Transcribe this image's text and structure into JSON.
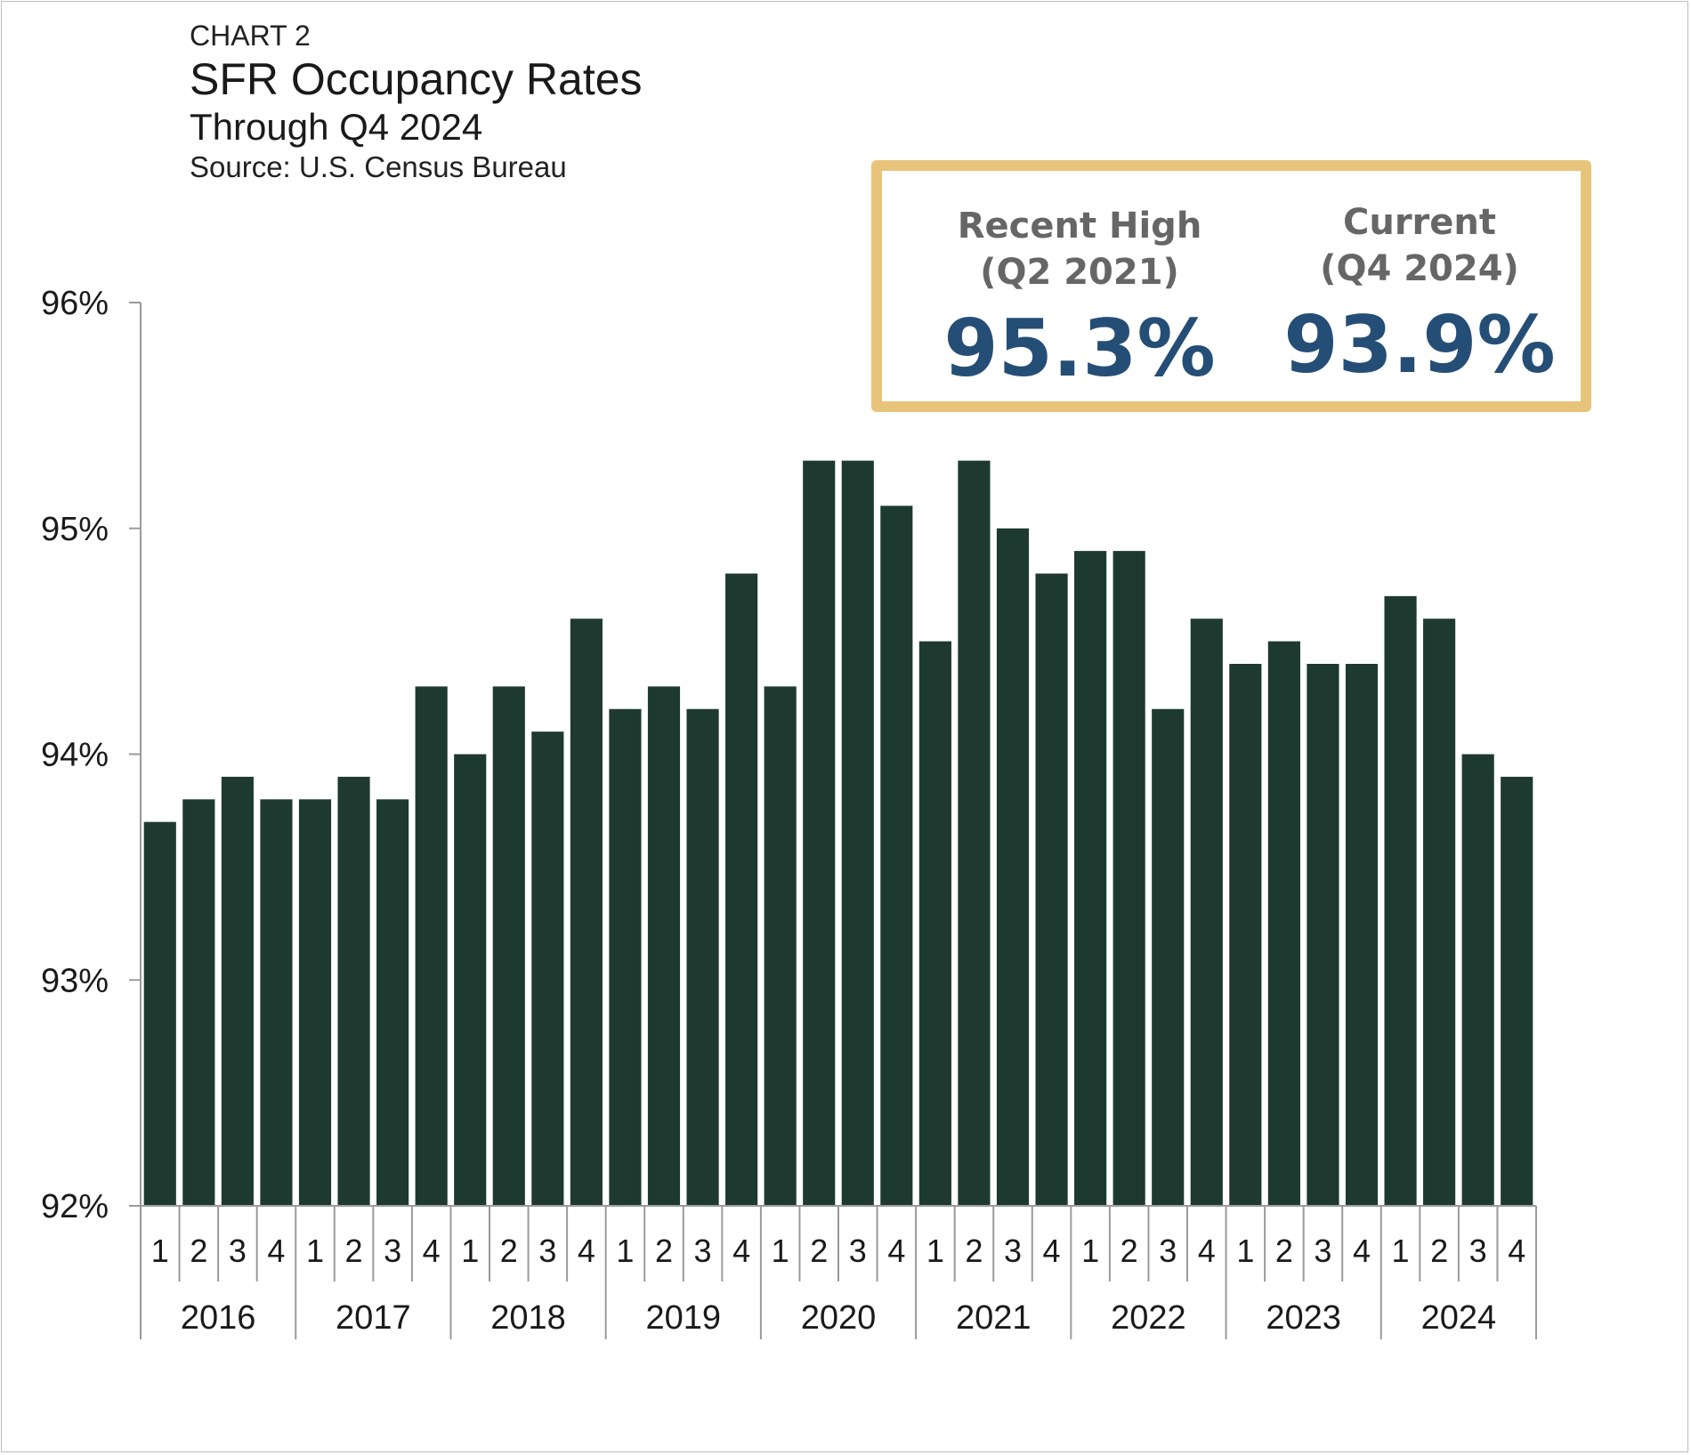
{
  "header": {
    "chart_number": "CHART 2",
    "title": "SFR Occupancy Rates",
    "subtitle": "Through Q4 2024",
    "source": "Source: U.S. Census Bureau"
  },
  "highlight": {
    "recent_high": {
      "label_line1": "Recent High",
      "label_line2": "(Q2 2021)",
      "value": "95.3%"
    },
    "current": {
      "label_line1": "Current",
      "label_line2": "(Q4 2024)",
      "value": "93.9%"
    },
    "border_color": "#e7c47a",
    "value_color": "#254e76"
  },
  "chart_data": {
    "type": "bar",
    "title": "SFR Occupancy Rates",
    "subtitle": "Through Q4 2024",
    "xlabel": "",
    "ylabel": "",
    "ylim": [
      92,
      96
    ],
    "y_ticks": [
      92,
      93,
      94,
      95,
      96
    ],
    "y_tick_labels": [
      "92%",
      "93%",
      "94%",
      "95%",
      "96%"
    ],
    "grid": false,
    "legend": "none",
    "bar_color": "#1e3a30",
    "years": [
      "2016",
      "2017",
      "2018",
      "2019",
      "2020",
      "2021",
      "2022",
      "2023",
      "2024"
    ],
    "quarter_labels": [
      "1",
      "2",
      "3",
      "4"
    ],
    "categories": [
      "2016 Q1",
      "2016 Q2",
      "2016 Q3",
      "2016 Q4",
      "2017 Q1",
      "2017 Q2",
      "2017 Q3",
      "2017 Q4",
      "2018 Q1",
      "2018 Q2",
      "2018 Q3",
      "2018 Q4",
      "2019 Q1",
      "2019 Q2",
      "2019 Q3",
      "2019 Q4",
      "2020 Q1",
      "2020 Q2",
      "2020 Q3",
      "2020 Q4",
      "2021 Q1",
      "2021 Q2",
      "2021 Q3",
      "2021 Q4",
      "2022 Q1",
      "2022 Q2",
      "2022 Q3",
      "2022 Q4",
      "2023 Q1",
      "2023 Q2",
      "2023 Q3",
      "2023 Q4",
      "2024 Q1",
      "2024 Q2",
      "2024 Q3",
      "2024 Q4"
    ],
    "values": [
      93.7,
      93.8,
      93.9,
      93.8,
      93.8,
      93.9,
      93.8,
      94.3,
      94.0,
      94.3,
      94.1,
      94.6,
      94.2,
      94.3,
      94.2,
      94.8,
      94.3,
      95.3,
      95.3,
      95.1,
      94.5,
      95.3,
      95.0,
      94.8,
      94.9,
      94.9,
      94.2,
      94.6,
      94.4,
      94.5,
      94.4,
      94.4,
      94.7,
      94.6,
      94.0,
      93.9
    ]
  }
}
